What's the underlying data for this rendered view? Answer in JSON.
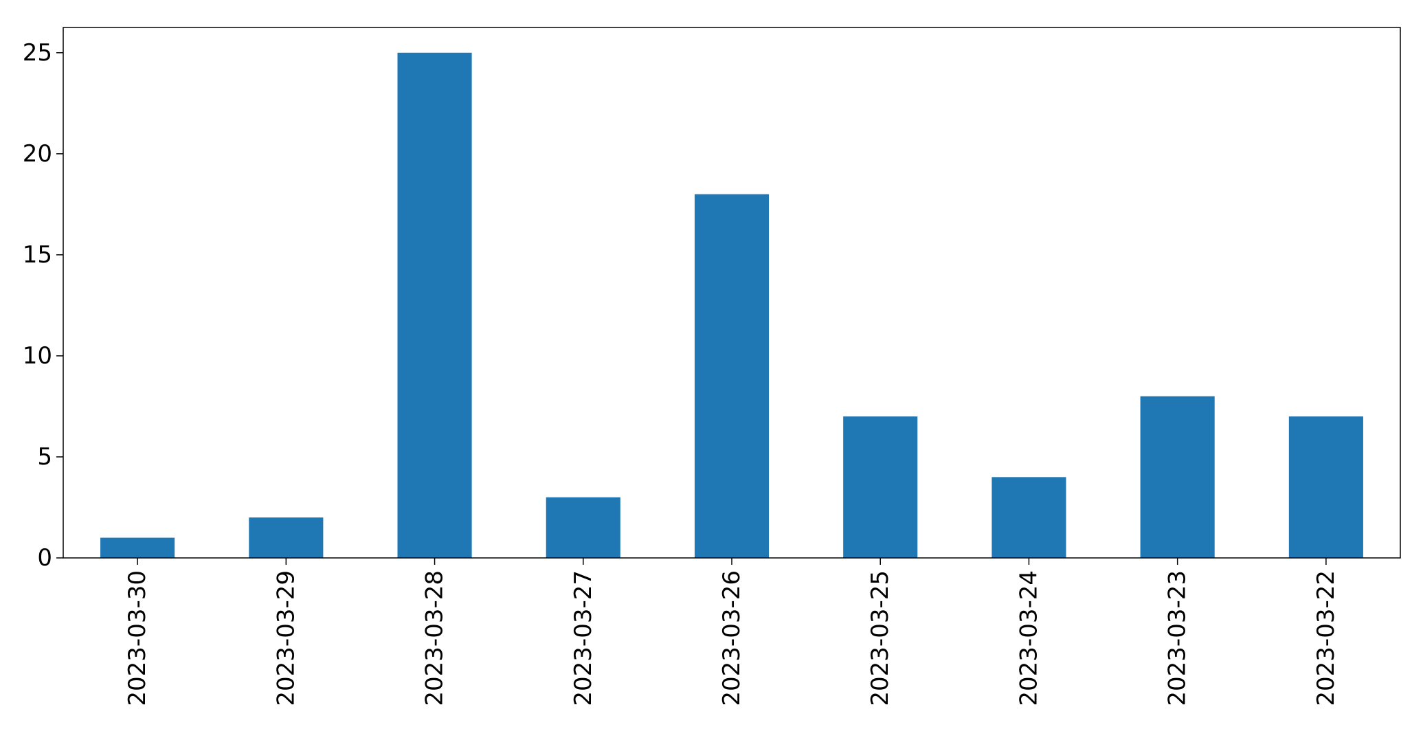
{
  "chart_data": {
    "type": "bar",
    "categories": [
      "2023-03-30",
      "2023-03-29",
      "2023-03-28",
      "2023-03-27",
      "2023-03-26",
      "2023-03-25",
      "2023-03-24",
      "2023-03-23",
      "2023-03-22"
    ],
    "values": [
      1,
      2,
      25,
      3,
      18,
      7,
      4,
      8,
      7
    ],
    "title": "",
    "xlabel": "",
    "ylabel": "",
    "ylim": [
      0,
      26.25
    ],
    "yticks": [
      0,
      5,
      10,
      15,
      20,
      25
    ],
    "grid": false,
    "legend": "none",
    "bar_color": "#1f77b4"
  }
}
